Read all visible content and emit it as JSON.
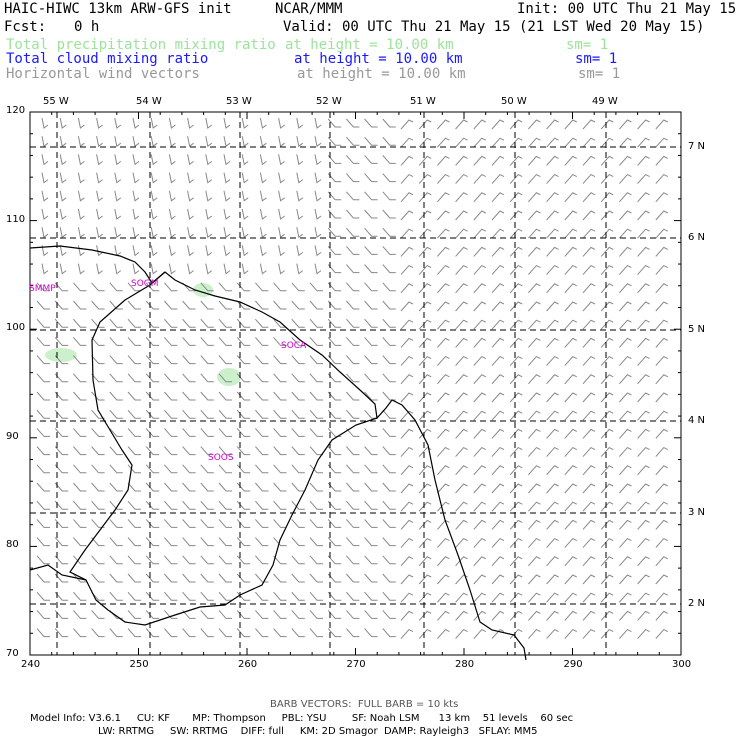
{
  "header": {
    "model_title": "HAIC-HIWC 13km ARW-GFS init",
    "center": "NCAR/MMM",
    "init": "Init: 00 UTC Thu 21 May 15",
    "fcst_label": "Fcst:",
    "fcst_value": "0 h",
    "valid": "Valid: 00 UTC Thu 21 May 15 (21 LST Wed 20 May 15)",
    "fields": [
      {
        "name": "Total precipitation mixing ratio",
        "height": "at height = 10.00 km",
        "sm": "sm= 1",
        "color": "#9be39b"
      },
      {
        "name": "Total cloud mixing ratio",
        "height": "at height = 10.00 km",
        "sm": "sm= 1",
        "color": "#1a1aff"
      },
      {
        "name": "Horizontal wind vectors",
        "height": "at height = 10.00 km",
        "sm": "sm= 1",
        "color": "#999999"
      }
    ]
  },
  "map": {
    "top_lon_labels": [
      "55 W",
      "54 W",
      "53 W",
      "52 W",
      "51 W",
      "50 W",
      "49 W"
    ],
    "right_lat_labels": [
      "7 N",
      "6 N",
      "5 N",
      "4 N",
      "3 N",
      "2 N"
    ],
    "left_y_ticks": [
      "120",
      "110",
      "100",
      "90",
      "80",
      "70"
    ],
    "bottom_x_ticks": [
      "240",
      "250",
      "260",
      "270",
      "280",
      "290",
      "300"
    ],
    "station_labels": [
      "SMMP",
      "SOGM",
      "SOCA",
      "SOOS"
    ],
    "station_color": "#cc00cc",
    "coast_color": "#000000",
    "barb_color": "#888888",
    "precip_color": "#ccf0cc"
  },
  "footer": {
    "barb_note": "BARB VECTORS:  FULL BARB = 10 kts",
    "line1": "Model Info: V3.6.1     CU: KF       MP: Thompson     PBL: YSU        SF: Noah LSM      13 km    51 levels    60 sec",
    "line2": "LW: RRTMG     SW: RRTMG    DIFF: full     KM: 2D Smagor  DAMP: Rayleigh3   SFLAY: MM5"
  }
}
